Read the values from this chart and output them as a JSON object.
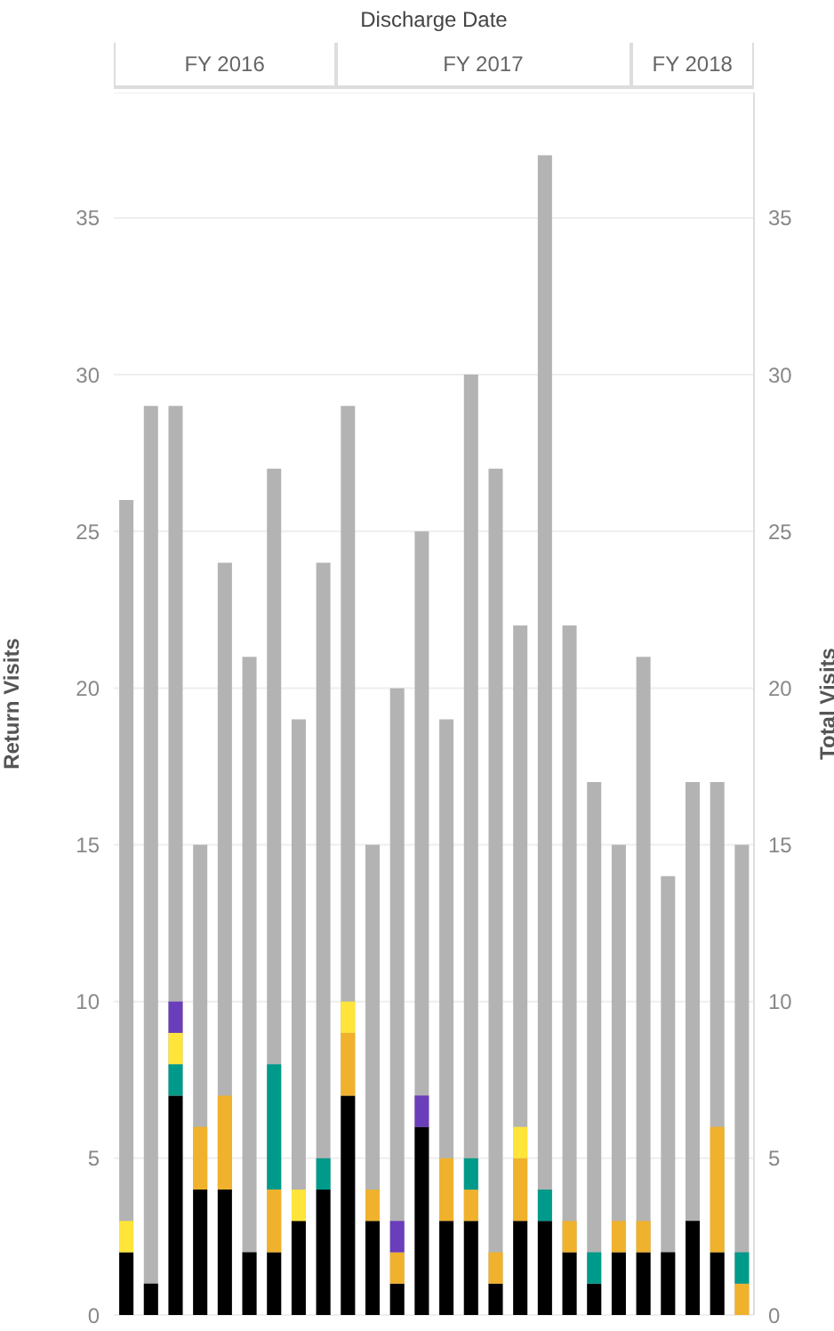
{
  "chart_data": {
    "type": "bar",
    "title": "Discharge Date",
    "annotations": [
      "FY 2016",
      "FY 2017",
      "FY 2018"
    ],
    "ylabel": "Return Visits",
    "y2label": "Total Visits",
    "categories": [
      null,
      null,
      null,
      null,
      null,
      null,
      null,
      null,
      null,
      null,
      null,
      null,
      null,
      null,
      null,
      null,
      null,
      null,
      null,
      null,
      null,
      null,
      null,
      null,
      null,
      null
    ],
    "stacked": true,
    "grid": "y",
    "ylim": [
      0,
      39
    ],
    "yticks": [
      0,
      5,
      10,
      15,
      20,
      25,
      30,
      35
    ],
    "y2lim": [
      0,
      39
    ],
    "y2ticks": [
      0,
      5,
      10,
      15,
      20,
      25,
      30,
      35
    ],
    "series": [
      {
        "color": "#b3b3b3",
        "axis": "y2",
        "values": [
          26,
          29,
          29,
          15,
          24,
          21,
          27,
          19,
          24,
          29,
          15,
          20,
          25,
          19,
          30,
          27,
          22,
          37,
          22,
          17,
          15,
          21,
          14,
          17,
          17,
          15
        ]
      },
      {
        "color": "#000000",
        "values": [
          2,
          1,
          7,
          4,
          4,
          2,
          2,
          3,
          4,
          7,
          3,
          1,
          6,
          3,
          3,
          1,
          3,
          3,
          2,
          1,
          2,
          2,
          2,
          3,
          2,
          0
        ]
      },
      {
        "color": "#f0b22c",
        "values": [
          0,
          0,
          0,
          2,
          3,
          0,
          2,
          0,
          0,
          2,
          1,
          1,
          0,
          2,
          1,
          1,
          2,
          0,
          1,
          0,
          1,
          1,
          0,
          0,
          4,
          1
        ]
      },
      {
        "color": "#009a8a",
        "values": [
          0,
          0,
          1,
          0,
          0,
          0,
          4,
          0,
          1,
          0,
          0,
          0,
          0,
          0,
          1,
          0,
          0,
          1,
          0,
          1,
          0,
          0,
          0,
          0,
          0,
          1
        ]
      },
      {
        "color": "#ffe539",
        "values": [
          1,
          0,
          1,
          0,
          0,
          0,
          0,
          1,
          0,
          1,
          0,
          0,
          0,
          0,
          0,
          0,
          1,
          0,
          0,
          0,
          0,
          0,
          0,
          0,
          0,
          0
        ]
      },
      {
        "color": "#6a3dba",
        "values": [
          0,
          0,
          1,
          0,
          0,
          0,
          0,
          0,
          0,
          0,
          0,
          1,
          1,
          0,
          0,
          0,
          0,
          0,
          0,
          0,
          0,
          0,
          0,
          0,
          0,
          0
        ]
      }
    ]
  }
}
